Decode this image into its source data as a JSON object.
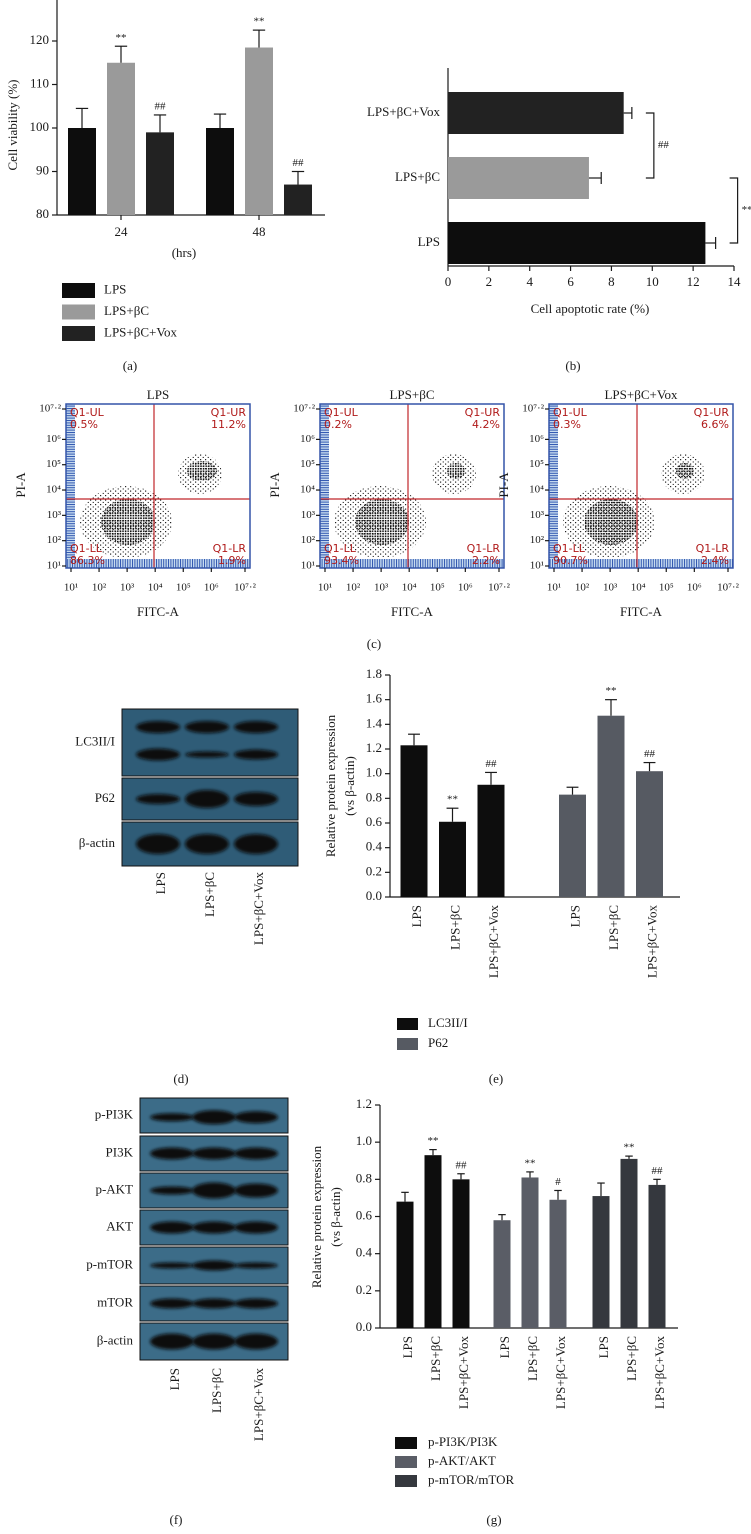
{
  "panel_labels": [
    "(a)",
    "(b)",
    "(c)",
    "(d)",
    "(e)",
    "(f)",
    "(g)"
  ],
  "chart_data": [
    {
      "type": "bar",
      "ylabel": "Cell viability (%)",
      "xlabel": "(hrs)",
      "categories": [
        "24",
        "48"
      ],
      "series": [
        {
          "name": "LPS",
          "color": "#0d0d0d",
          "values": [
            100,
            100
          ],
          "errors": [
            4.5,
            3.2
          ]
        },
        {
          "name": "LPS+βC",
          "color": "#9a9a9a",
          "values": [
            115,
            118.5
          ],
          "errors": [
            3.8,
            4
          ],
          "marks": [
            "**",
            "**"
          ]
        },
        {
          "name": "LPS+βC+Vox",
          "color": "#222222",
          "values": [
            99,
            87
          ],
          "errors": [
            4,
            3
          ],
          "marks": [
            "##",
            "##"
          ]
        }
      ],
      "ylim": [
        80,
        130
      ],
      "yticks": [
        80,
        90,
        100,
        110,
        120
      ]
    },
    {
      "type": "barh",
      "xlabel": "Cell apoptotic rate (%)",
      "categories": [
        "LPS+βC+Vox",
        "LPS+βC",
        "LPS"
      ],
      "values": [
        8.6,
        6.9,
        12.6
      ],
      "errors": [
        0.4,
        0.6,
        0.5
      ],
      "colors": [
        "#222222",
        "#9a9a9a",
        "#0d0d0d"
      ],
      "brackets": [
        "##",
        "**"
      ],
      "xlim": [
        0,
        14
      ],
      "xticks": [
        0,
        2,
        4,
        6,
        8,
        10,
        12,
        14
      ]
    },
    {
      "type": "bar",
      "ylabel": [
        "Relative protein expression",
        "(vs β-actin)"
      ],
      "categories": [
        "LPS",
        "LPS+βC",
        "LPS+βC+Vox"
      ],
      "series": [
        {
          "name": "LC3II/I",
          "color": "#0d0d0d",
          "values": [
            1.23,
            0.61,
            0.91
          ],
          "errors": [
            0.09,
            0.11,
            0.1
          ],
          "marks": [
            null,
            "**",
            "##"
          ]
        },
        {
          "name": "P62",
          "color": "#565a62",
          "values": [
            0.83,
            1.47,
            1.02
          ],
          "errors": [
            0.06,
            0.13,
            0.07
          ],
          "marks": [
            null,
            "**",
            "##"
          ]
        }
      ],
      "ylim": [
        0,
        1.8
      ],
      "yticks": [
        {
          "value": 0,
          "label": "0.0"
        },
        0.2,
        0.4,
        0.6,
        0.8,
        {
          "value": 1,
          "label": "1.0"
        },
        1.2,
        1.4,
        1.6,
        1.8
      ]
    },
    {
      "type": "bar",
      "ylabel": [
        "Relative protein expression",
        "(vs β-actin)"
      ],
      "categories": [
        "LPS",
        "LPS+βC",
        "LPS+βC+Vox"
      ],
      "series": [
        {
          "name": "p-PI3K/PI3K",
          "color": "#0d0d0d",
          "values": [
            0.68,
            0.93,
            0.8
          ],
          "errors": [
            0.05,
            0.03,
            0.03
          ],
          "marks": [
            null,
            "**",
            "##"
          ]
        },
        {
          "name": "p-AKT/AKT",
          "color": "#5a5d66",
          "values": [
            0.58,
            0.81,
            0.69
          ],
          "errors": [
            0.03,
            0.03,
            0.05
          ],
          "marks": [
            null,
            "**",
            "#"
          ]
        },
        {
          "name": "p-mTOR/mTOR",
          "color": "#35383e",
          "values": [
            0.71,
            0.91,
            0.77
          ],
          "errors": [
            0.07,
            0.015,
            0.03
          ],
          "marks": [
            null,
            "**",
            "##"
          ]
        }
      ],
      "ylim": [
        0,
        1.2
      ],
      "yticks": [
        {
          "value": 0,
          "label": "0.0"
        },
        0.2,
        0.4,
        0.6,
        0.8,
        {
          "value": 1,
          "label": "1.0"
        },
        1.2
      ]
    }
  ],
  "flow_cytometry": {
    "xlabel": "FITC-A",
    "ylabel": "PI-A",
    "xlim": [
      1,
      7.2
    ],
    "ylim": [
      1,
      7.2
    ],
    "xticks": [
      {
        "value": 1,
        "label": "10¹"
      },
      {
        "value": 2,
        "label": "10²"
      },
      {
        "value": 3,
        "label": "10³"
      },
      {
        "value": 4,
        "label": "10⁴"
      },
      {
        "value": 5,
        "label": "10⁵"
      },
      {
        "value": 6,
        "label": "10⁶"
      },
      {
        "value": 7.2,
        "label": "10⁷·²"
      }
    ],
    "yticks": [
      {
        "value": 1,
        "label": "10¹"
      },
      {
        "value": 2,
        "label": "10²"
      },
      {
        "value": 3,
        "label": "10³"
      },
      {
        "value": 4,
        "label": "10⁴"
      },
      {
        "value": 5,
        "label": "10⁵"
      },
      {
        "value": 6,
        "label": "10⁶"
      },
      {
        "value": 7.2,
        "label": "10⁷·²"
      }
    ],
    "panels": [
      {
        "title": "LPS",
        "quadrants": [
          {
            "name": "Q1-UL",
            "percent": "0.5%"
          },
          {
            "name": "Q1-UR",
            "percent": "11.2%"
          },
          {
            "name": "Q1-LL",
            "percent": "86.3%"
          },
          {
            "name": "Q1-LR",
            "percent": "1.9%"
          }
        ]
      },
      {
        "title": "LPS+βC",
        "quadrants": [
          {
            "name": "Q1-UL",
            "percent": "0.2%"
          },
          {
            "name": "Q1-UR",
            "percent": "4.2%"
          },
          {
            "name": "Q1-LL",
            "percent": "93.4%"
          },
          {
            "name": "Q1-LR",
            "percent": "2.2%"
          }
        ]
      },
      {
        "title": "LPS+βC+Vox",
        "quadrants": [
          {
            "name": "Q1-UL",
            "percent": "0.3%"
          },
          {
            "name": "Q1-UR",
            "percent": "6.6%"
          },
          {
            "name": "Q1-LL",
            "percent": "90.7%"
          },
          {
            "name": "Q1-LR",
            "percent": "2.4%"
          }
        ]
      }
    ]
  },
  "western_blots": [
    {
      "rows": [
        "LC3II/I",
        "P62",
        "β-actin"
      ],
      "lanes": [
        "LPS",
        "LPS+βC",
        "LPS+βC+Vox"
      ]
    },
    {
      "rows": [
        "p-PI3K",
        "PI3K",
        "p-AKT",
        "AKT",
        "p-mTOR",
        "mTOR",
        "β-actin"
      ],
      "lanes": [
        "LPS",
        "LPS+βC",
        "LPS+βC+Vox"
      ]
    }
  ]
}
